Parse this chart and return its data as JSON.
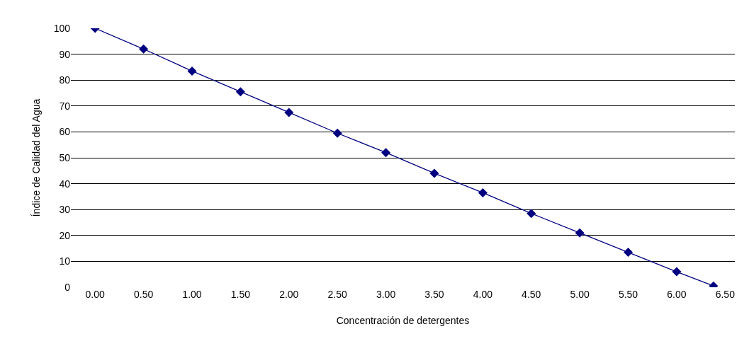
{
  "chart_data": {
    "type": "line",
    "xlabel": "Concentración de detergentes",
    "ylabel": "Índice de Calidad del Agua",
    "x": [
      0,
      0.5,
      1,
      1.5,
      2,
      2.5,
      3,
      3.5,
      4,
      4.5,
      5,
      5.5,
      6,
      6.38
    ],
    "series": [
      {
        "color": "#000080",
        "values": [
          100,
          92,
          83.5,
          75.5,
          67.5,
          59.5,
          52,
          44,
          36.5,
          28.5,
          21,
          13.5,
          6,
          0.5
        ]
      }
    ],
    "xlim": [
      -0.25,
      6.6
    ],
    "xticks": [
      {
        "value": 0,
        "label": "0.00"
      },
      {
        "value": 0.5,
        "label": "0.50"
      },
      {
        "value": 1,
        "label": "1.00"
      },
      {
        "value": 1.5,
        "label": "1.50"
      },
      {
        "value": 2,
        "label": "2.00"
      },
      {
        "value": 2.5,
        "label": "2.50"
      },
      {
        "value": 3,
        "label": "3.00"
      },
      {
        "value": 3.5,
        "label": "3.50"
      },
      {
        "value": 4,
        "label": "4.00"
      },
      {
        "value": 4.5,
        "label": "4.50"
      },
      {
        "value": 5,
        "label": "5.00"
      },
      {
        "value": 5.5,
        "label": "5.50"
      },
      {
        "value": 6,
        "label": "6.00"
      },
      {
        "value": 6.5,
        "label": "6.50"
      }
    ],
    "ylim": [
      0,
      100
    ],
    "yticks": [
      0,
      10,
      20,
      30,
      40,
      50,
      60,
      70,
      80,
      90,
      100
    ],
    "grid": "y",
    "marker": "diamond",
    "line_style": "solid",
    "legend": false
  }
}
